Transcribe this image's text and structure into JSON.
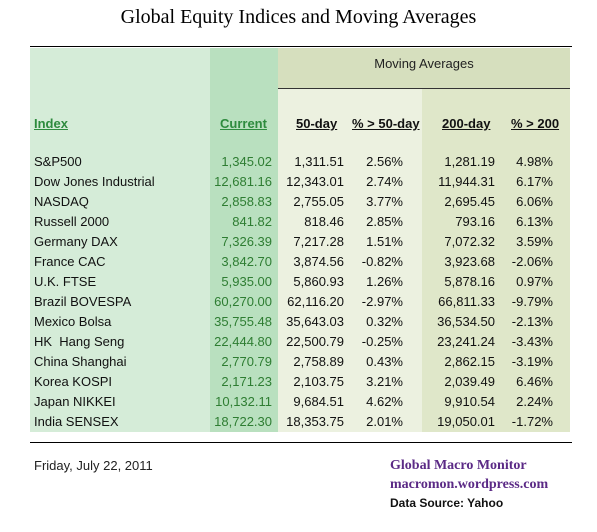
{
  "title": "Global Equity Indices and Moving Averages",
  "table": {
    "group_header": "Moving Averages",
    "headers": {
      "index": "Index",
      "current": "Current",
      "ma50": "50-day",
      "pct50": "% > 50-day",
      "ma200": "200-day",
      "pct200": "% > 200"
    },
    "rows": [
      {
        "index": "S&P500",
        "current": "1,345.02",
        "ma50": "1,311.51",
        "pct50": "2.56%",
        "ma200": "1,281.19",
        "pct200": "4.98%"
      },
      {
        "index": "Dow Jones Industrial",
        "current": "12,681.16",
        "ma50": "12,343.01",
        "pct50": "2.74%",
        "ma200": "11,944.31",
        "pct200": "6.17%"
      },
      {
        "index": "NASDAQ",
        "current": "2,858.83",
        "ma50": "2,755.05",
        "pct50": "3.77%",
        "ma200": "2,695.45",
        "pct200": "6.06%"
      },
      {
        "index": "Russell 2000",
        "current": "841.82",
        "ma50": "818.46",
        "pct50": "2.85%",
        "ma200": "793.16",
        "pct200": "6.13%"
      },
      {
        "index": "Germany DAX",
        "current": "7,326.39",
        "ma50": "7,217.28",
        "pct50": "1.51%",
        "ma200": "7,072.32",
        "pct200": "3.59%"
      },
      {
        "index": "France CAC",
        "current": "3,842.70",
        "ma50": "3,874.56",
        "pct50": "-0.82%",
        "ma200": "3,923.68",
        "pct200": "-2.06%"
      },
      {
        "index": "U.K. FTSE",
        "current": "5,935.00",
        "ma50": "5,860.93",
        "pct50": "1.26%",
        "ma200": "5,878.16",
        "pct200": "0.97%"
      },
      {
        "index": "Brazil BOVESPA",
        "current": "60,270.00",
        "ma50": "62,116.20",
        "pct50": "-2.97%",
        "ma200": "66,811.33",
        "pct200": "-9.79%"
      },
      {
        "index": "Mexico Bolsa",
        "current": "35,755.48",
        "ma50": "35,643.03",
        "pct50": "0.32%",
        "ma200": "36,534.50",
        "pct200": "-2.13%"
      },
      {
        "index": "HK  Hang Seng",
        "current": "22,444.80",
        "ma50": "22,500.79",
        "pct50": "-0.25%",
        "ma200": "23,241.24",
        "pct200": "-3.43%"
      },
      {
        "index": "China Shanghai",
        "current": "2,770.79",
        "ma50": "2,758.89",
        "pct50": "0.43%",
        "ma200": "2,862.15",
        "pct200": "-3.19%"
      },
      {
        "index": "Korea KOSPI",
        "current": "2,171.23",
        "ma50": "2,103.75",
        "pct50": "3.21%",
        "ma200": "2,039.49",
        "pct200": "6.46%"
      },
      {
        "index": "Japan NIKKEI",
        "current": "10,132.11",
        "ma50": "9,684.51",
        "pct50": "4.62%",
        "ma200": "9,910.54",
        "pct200": "2.24%"
      },
      {
        "index": "India SENSEX",
        "current": "18,722.30",
        "ma50": "18,353.75",
        "pct50": "2.01%",
        "ma200": "19,050.01",
        "pct200": "-1.72%"
      }
    ]
  },
  "footer": {
    "date": "Friday, July 22, 2011",
    "brand_name": "Global Macro Monitor",
    "brand_url": "macromon.wordpress.com",
    "source": "Data Source: Yahoo"
  },
  "colors": {
    "index_bg": "#d5ecd8",
    "current_bg": "#b9e0bf",
    "ma_header_bg": "#d6dfbe",
    "ma50_bg": "#ecf1e0",
    "ma200_bg": "#dfe7c9",
    "accent_green": "#2e8b3e",
    "brand_purple": "#5b2a86"
  }
}
